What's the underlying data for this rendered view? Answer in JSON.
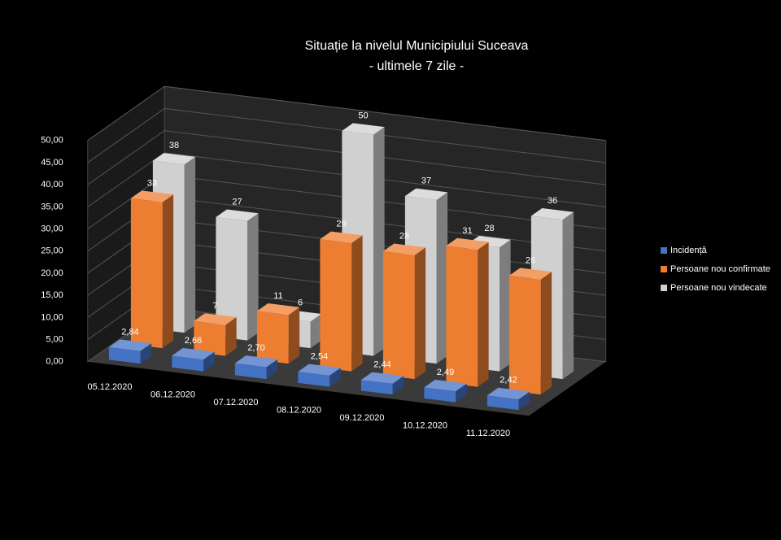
{
  "chart_data": {
    "type": "bar3d",
    "title": "Situație la nivelul Municipiului Suceava",
    "subtitle": "- ultimele 7 zile -",
    "categories": [
      "05.12.2020",
      "06.12.2020",
      "07.12.2020",
      "08.12.2020",
      "09.12.2020",
      "10.12.2020",
      "11.12.2020"
    ],
    "series": [
      {
        "name": "Incidență",
        "color": "#4472c4",
        "values": [
          2.84,
          2.66,
          2.7,
          2.54,
          2.44,
          2.49,
          2.42
        ],
        "value_labels": [
          "2,84",
          "2,66",
          "2,70",
          "2,54",
          "2,44",
          "2,49",
          "2,42"
        ]
      },
      {
        "name": "Persoane nou confirmate",
        "color": "#ed7d31",
        "values": [
          33,
          7,
          11,
          29,
          28,
          31,
          26
        ]
      },
      {
        "name": "Persoane nou vindecate",
        "color": "#d0d0d0",
        "values": [
          38,
          27,
          6,
          50,
          37,
          28,
          36
        ]
      }
    ],
    "ylim": [
      0,
      50
    ],
    "yticks": [
      {
        "value": 0,
        "label": "0,00"
      },
      {
        "value": 5,
        "label": "5,00"
      },
      {
        "value": 10,
        "label": "10,00"
      },
      {
        "value": 15,
        "label": "15,00"
      },
      {
        "value": 20,
        "label": "20,00"
      },
      {
        "value": 25,
        "label": "25,00"
      },
      {
        "value": 30,
        "label": "30,00"
      },
      {
        "value": 35,
        "label": "35,00"
      },
      {
        "value": 40,
        "label": "40,00"
      },
      {
        "value": 45,
        "label": "45,00"
      },
      {
        "value": 50,
        "label": "50,00"
      }
    ],
    "grid": true,
    "legend": "right"
  }
}
